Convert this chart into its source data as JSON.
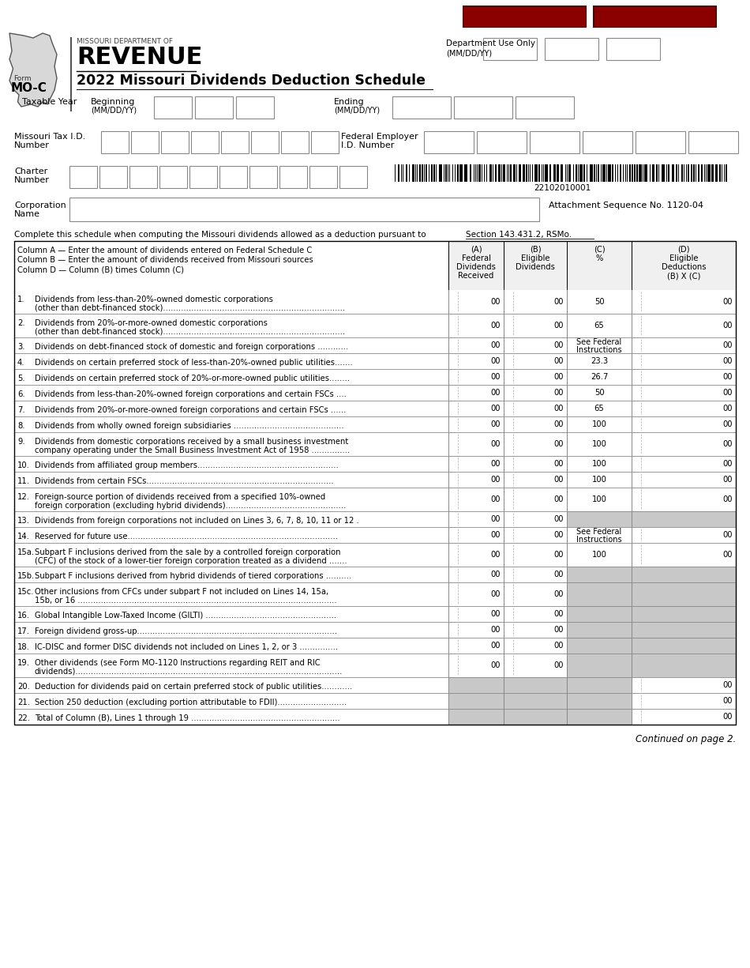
{
  "title": "2022 Missouri Dividends Deduction Schedule",
  "form_number": "MO-C",
  "bg_color": "#ffffff",
  "dark_red": "#8B0000",
  "shaded_col_bg": "#c8c8c8",
  "table_header_bg": "#f5f5f5",
  "rows": [
    {
      "num": "1.",
      "text1": "Dividends from less-than-20%-owned domestic corporations",
      "text2": "(other than debt-financed stock).......................................................................",
      "col_c": "50",
      "shaded_c": false,
      "shaded_d": false,
      "no_ab": false
    },
    {
      "num": "2.",
      "text1": "Dividends from 20%-or-more-owned domestic corporations",
      "text2": "(other than debt-financed stock).......................................................................",
      "col_c": "65",
      "shaded_c": false,
      "shaded_d": false,
      "no_ab": false
    },
    {
      "num": "3.",
      "text1": "Dividends on debt-financed stock of domestic and foreign corporations ............",
      "text2": "",
      "col_c": "See Federal\nInstructions",
      "shaded_c": false,
      "shaded_d": false,
      "no_ab": false
    },
    {
      "num": "4.",
      "text1": "Dividends on certain preferred stock of less-than-20%-owned public utilities.......",
      "text2": "",
      "col_c": "23.3",
      "shaded_c": false,
      "shaded_d": false,
      "no_ab": false
    },
    {
      "num": "5.",
      "text1": "Dividends on certain preferred stock of 20%-or-more-owned public utilities........",
      "text2": "",
      "col_c": "26.7",
      "shaded_c": false,
      "shaded_d": false,
      "no_ab": false
    },
    {
      "num": "6.",
      "text1": "Dividends from less-than-20%-owned foreign corporations and certain FSCs ....",
      "text2": "",
      "col_c": "50",
      "shaded_c": false,
      "shaded_d": false,
      "no_ab": false
    },
    {
      "num": "7.",
      "text1": "Dividends from 20%-or-more-owned foreign corporations and certain FSCs ......",
      "text2": "",
      "col_c": "65",
      "shaded_c": false,
      "shaded_d": false,
      "no_ab": false
    },
    {
      "num": "8.",
      "text1": "Dividends from wholly owned foreign subsidiaries ...........................................",
      "text2": "",
      "col_c": "100",
      "shaded_c": false,
      "shaded_d": false,
      "no_ab": false
    },
    {
      "num": "9.",
      "text1": "Dividends from domestic corporations received by a small business investment",
      "text2": "company operating under the Small Business Investment Act of 1958 ...............",
      "col_c": "100",
      "shaded_c": false,
      "shaded_d": false,
      "no_ab": false
    },
    {
      "num": "10.",
      "text1": "Dividends from affiliated group members.......................................................",
      "text2": "",
      "col_c": "100",
      "shaded_c": false,
      "shaded_d": false,
      "no_ab": false
    },
    {
      "num": "11.",
      "text1": "Dividends from certain FSCs.........................................................................",
      "text2": "",
      "col_c": "100",
      "shaded_c": false,
      "shaded_d": false,
      "no_ab": false
    },
    {
      "num": "12.",
      "text1": "Foreign-source portion of dividends received from a specified 10%-owned",
      "text2": "foreign corporation (excluding hybrid dividends)...............................................",
      "col_c": "100",
      "shaded_c": false,
      "shaded_d": false,
      "no_ab": false
    },
    {
      "num": "13.",
      "text1": "Dividends from foreign corporations not included on Lines 3, 6, 7, 8, 10, 11 or 12 .",
      "text2": "",
      "col_c": "",
      "shaded_c": true,
      "shaded_d": true,
      "no_ab": false
    },
    {
      "num": "14.",
      "text1": "Reserved for future use..................................................................................",
      "text2": "",
      "col_c": "See Federal\nInstructions",
      "shaded_c": false,
      "shaded_d": false,
      "no_ab": false
    },
    {
      "num": "15a.",
      "text1": "Subpart F inclusions derived from the sale by a controlled foreign corporation",
      "text2": "(CFC) of the stock of a lower-tier foreign corporation treated as a dividend .......",
      "col_c": "100",
      "shaded_c": false,
      "shaded_d": false,
      "no_ab": false
    },
    {
      "num": "15b.",
      "text1": "Subpart F inclusions derived from hybrid dividends of tiered corporations ..........",
      "text2": "",
      "col_c": "",
      "shaded_c": true,
      "shaded_d": true,
      "no_ab": false
    },
    {
      "num": "15c.",
      "text1": "Other inclusions from CFCs under subpart F not included on Lines 14, 15a,",
      "text2": "15b, or 16 .....................................................................................................",
      "col_c": "",
      "shaded_c": true,
      "shaded_d": true,
      "no_ab": false
    },
    {
      "num": "16.",
      "text1": "Global Intangible Low-Taxed Income (GILTI) ...................................................",
      "text2": "",
      "col_c": "",
      "shaded_c": true,
      "shaded_d": true,
      "no_ab": false
    },
    {
      "num": "17.",
      "text1": "Foreign dividend gross-up..............................................................................",
      "text2": "",
      "col_c": "",
      "shaded_c": true,
      "shaded_d": true,
      "no_ab": false
    },
    {
      "num": "18.",
      "text1": "IC-DISC and former DISC dividends not included on Lines 1, 2, or 3 ...............",
      "text2": "",
      "col_c": "",
      "shaded_c": true,
      "shaded_d": true,
      "no_ab": false
    },
    {
      "num": "19.",
      "text1": "Other dividends (see Form MO-1120 Instructions regarding REIT and RIC",
      "text2": "dividends)........................................................................................................",
      "col_c": "",
      "shaded_c": true,
      "shaded_d": true,
      "no_ab": false
    },
    {
      "num": "20.",
      "text1": "Deduction for dividends paid on certain preferred stock of public utilities............",
      "text2": "",
      "col_c": "",
      "shaded_c": true,
      "shaded_d": false,
      "no_ab": true
    },
    {
      "num": "21.",
      "text1": "Section 250 deduction (excluding portion attributable to FDII)...........................",
      "text2": "",
      "col_c": "",
      "shaded_c": true,
      "shaded_d": false,
      "no_ab": true
    },
    {
      "num": "22.",
      "text1": "Total of Column (B), Lines 1 through 19 ..........................................................",
      "text2": "",
      "col_c": "",
      "shaded_c": true,
      "shaded_d": false,
      "no_ab": true
    }
  ]
}
